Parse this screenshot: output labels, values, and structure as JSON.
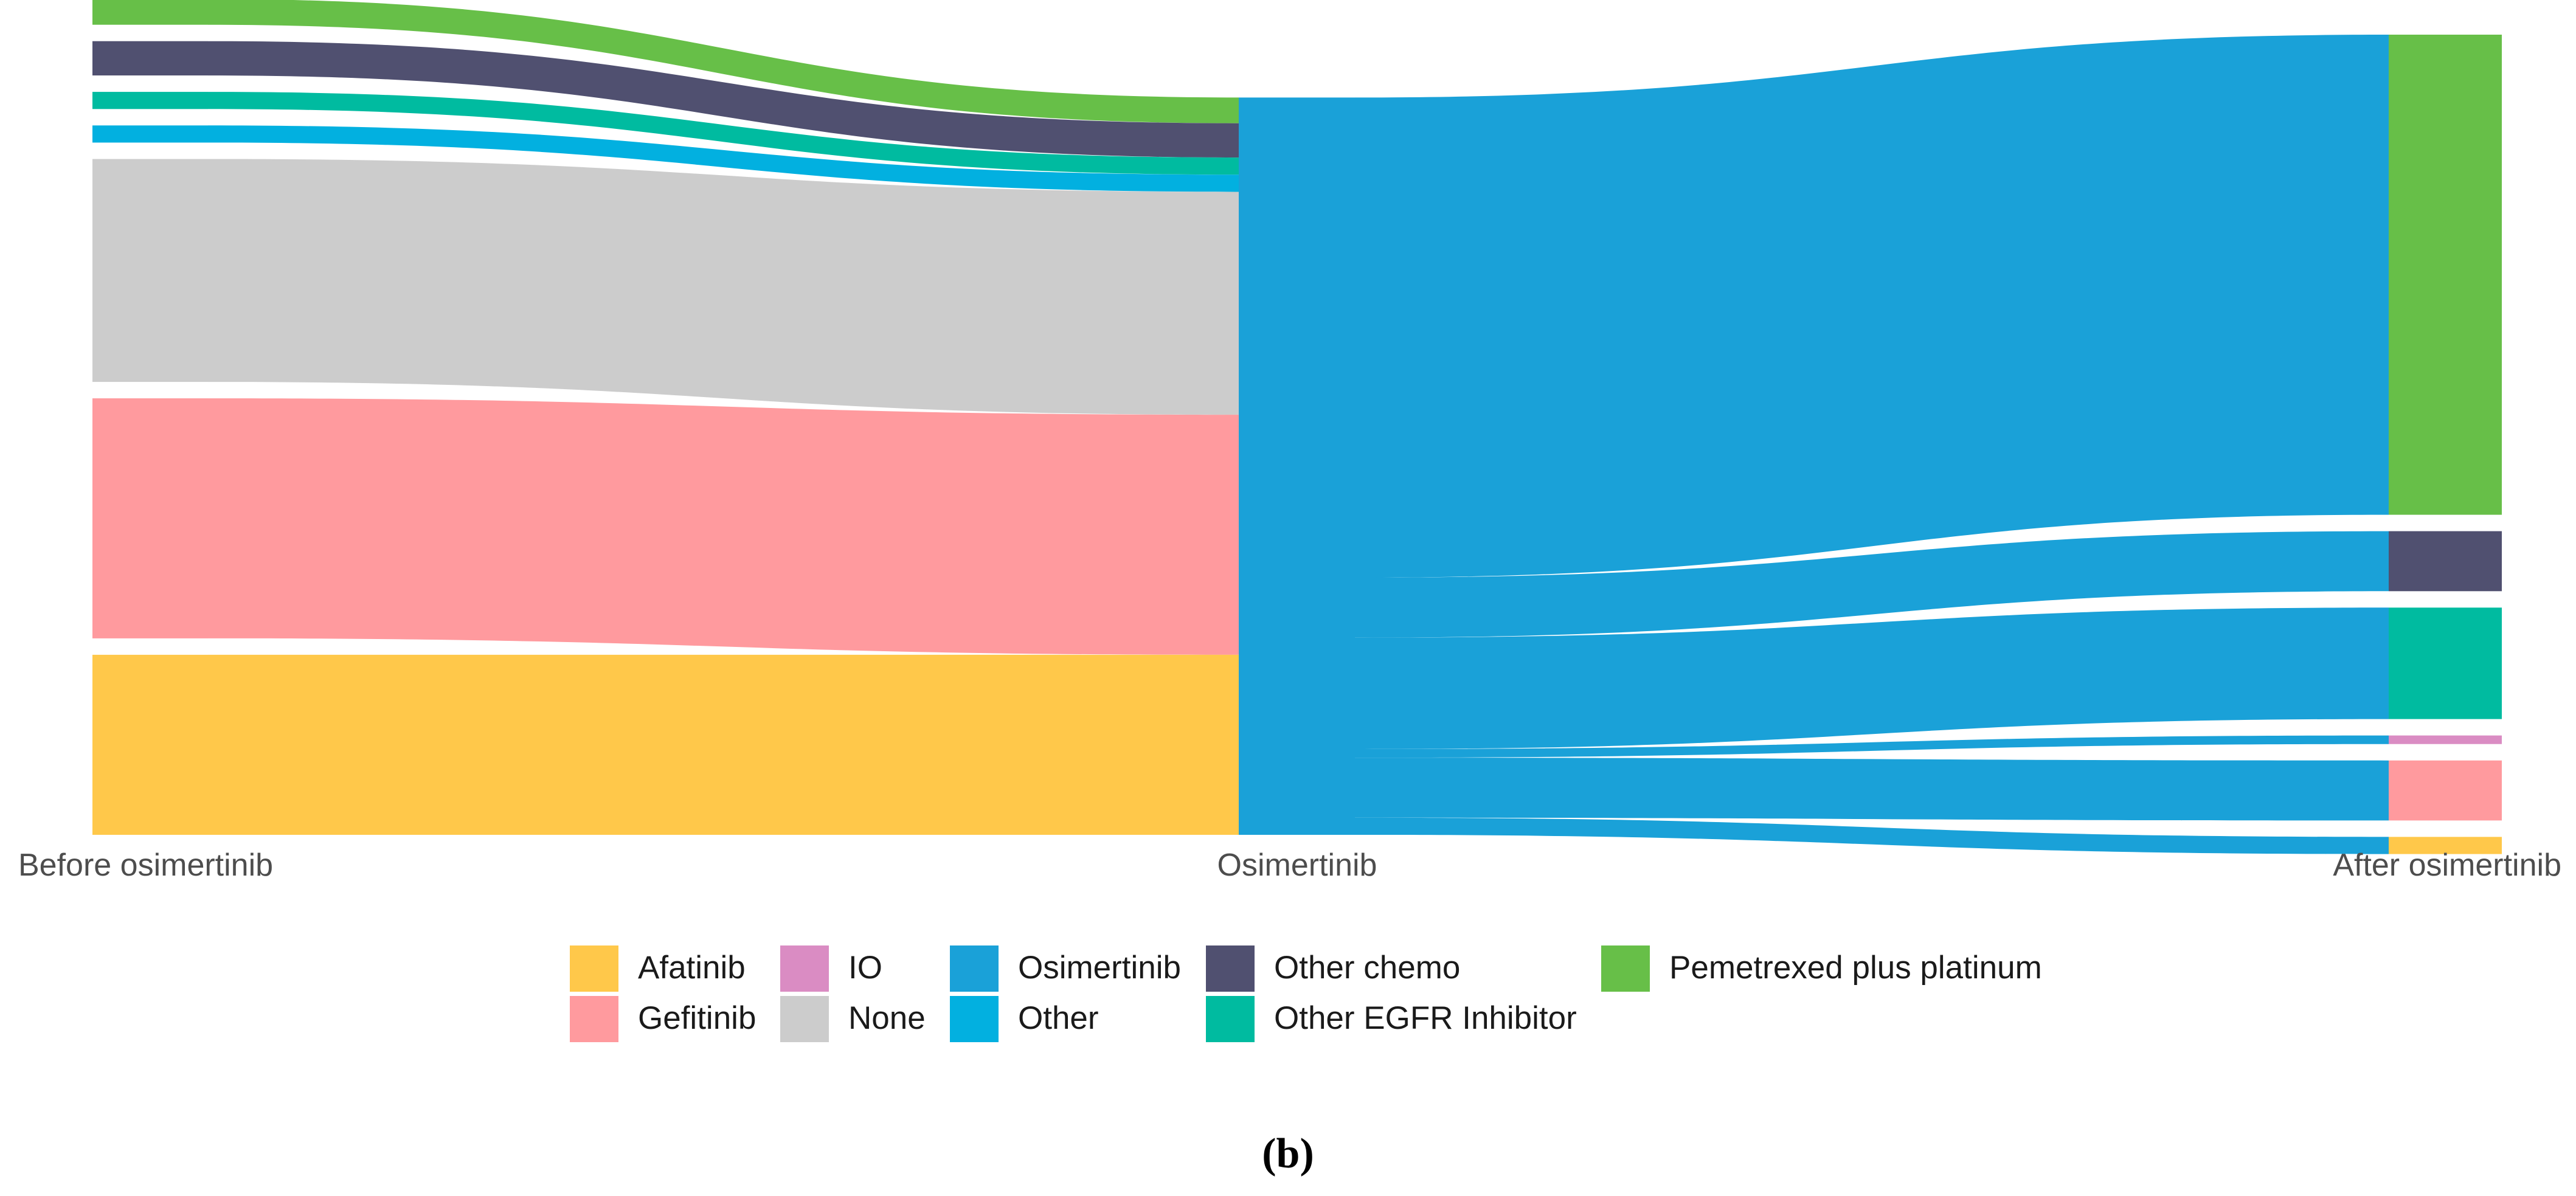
{
  "chart_data": {
    "type": "sankey",
    "title": "",
    "panel_label_open": "(",
    "panel_label_letter": "b",
    "panel_label_close": ")",
    "stages": [
      {
        "id": "before",
        "label": "Before osimertinib"
      },
      {
        "id": "osimertinib",
        "label": "Osimertinib"
      },
      {
        "id": "after",
        "label": "After osimertinib"
      }
    ],
    "colors": {
      "Afatinib": "#FFC84A",
      "Gefitinib": "#FF9A9E",
      "IO": "#DA8CC3",
      "None": "#CCCCCC",
      "Osimertinib": "#1AA1D8",
      "Other": "#02B0E0",
      "Other chemo": "#505070",
      "Other EGFR Inhibitor": "#00BBA0",
      "Pemetrexed plus platinum": "#67BF48"
    },
    "before_nodes": [
      {
        "name": "Pemetrexed plus platinum",
        "value": 3
      },
      {
        "name": "Other chemo",
        "value": 4
      },
      {
        "name": "Other EGFR Inhibitor",
        "value": 2
      },
      {
        "name": "Other",
        "value": 2
      },
      {
        "name": "None",
        "value": 26
      },
      {
        "name": "Gefitinib",
        "value": 28
      },
      {
        "name": "Afatinib",
        "value": 21
      }
    ],
    "middle_node": {
      "name": "Osimertinib",
      "value": 86
    },
    "after_nodes": [
      {
        "name": "Pemetrexed plus platinum",
        "value": 56
      },
      {
        "name": "Other chemo",
        "value": 7
      },
      {
        "name": "Other EGFR Inhibitor",
        "value": 13
      },
      {
        "name": "IO",
        "value": 1
      },
      {
        "name": "Gefitinib",
        "value": 7
      },
      {
        "name": "Afatinib",
        "value": 2
      }
    ],
    "legend": [
      [
        "Afatinib",
        "Gefitinib"
      ],
      [
        "IO",
        "None"
      ],
      [
        "Osimertinib",
        "Other"
      ],
      [
        "Other chemo",
        "Other EGFR Inhibitor"
      ],
      [
        "Pemetrexed plus platinum"
      ]
    ]
  }
}
